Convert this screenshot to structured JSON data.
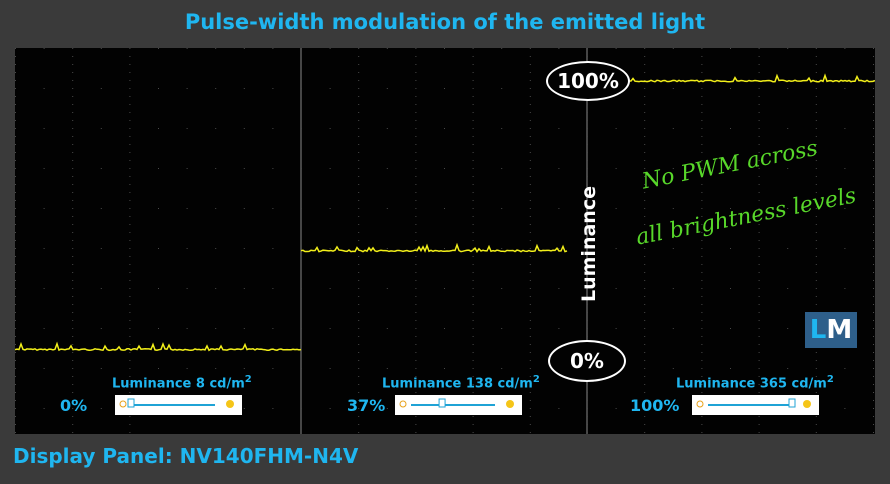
{
  "title": "Pulse-width modulation of the emitted light",
  "footer": "Display Panel: NV140FHM-N4V",
  "note_line1": "No PWM across",
  "note_line2": "all brightness levels",
  "logo": {
    "l": "L",
    "m": "M"
  },
  "colors": {
    "title": "#1fb6f0",
    "trace": "#f2ef1a",
    "note": "#58d72a",
    "background": "#020202"
  },
  "chart_data": {
    "type": "line",
    "title": "Pulse-width modulation of the emitted light",
    "ylabel": "Luminance",
    "y_ticks": [
      "0%",
      "100%"
    ],
    "ylim": [
      0,
      100
    ],
    "grid": true,
    "series": [
      {
        "name": "0%",
        "luminance_label": "Luminance 8 cd/m",
        "brightness_setting": 0,
        "relative_level": 2,
        "pwm": false
      },
      {
        "name": "37%",
        "luminance_label": "Luminance 138 cd/m",
        "brightness_setting": 37,
        "relative_level": 38,
        "pwm": false
      },
      {
        "name": "100%",
        "luminance_label": "Luminance 365 cd/m",
        "brightness_setting": 100,
        "relative_level": 100,
        "pwm": false
      }
    ],
    "superscript": "2"
  }
}
